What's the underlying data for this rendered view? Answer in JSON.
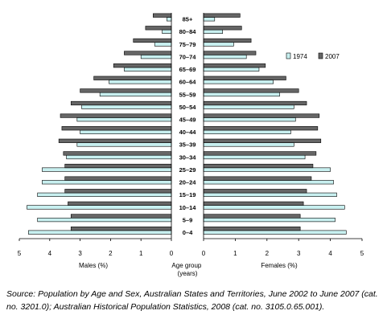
{
  "chart_data": {
    "type": "bar",
    "orientation": "horizontal",
    "subtype": "population-pyramid",
    "categories": [
      "0–4",
      "5–9",
      "10–14",
      "15–19",
      "20–24",
      "25–29",
      "30–34",
      "35–39",
      "40–44",
      "45–49",
      "50–54",
      "55–59",
      "60–64",
      "65–69",
      "70–74",
      "75–79",
      "80–84",
      "85+"
    ],
    "category_labels": [
      "0–4",
      "5–9",
      "10–14",
      "15–19",
      "20–24",
      "25–29",
      "30–34",
      "35–39",
      "40–44",
      "45–49",
      "50–54",
      "55–59",
      "60–64",
      "65–69",
      "70–74",
      "75–79",
      "80–84",
      "85+"
    ],
    "series": [
      {
        "name": "1974",
        "color": "#c8f0f0",
        "males": [
          4.7,
          4.4,
          4.75,
          4.4,
          4.25,
          4.25,
          3.45,
          3.1,
          3.0,
          3.1,
          2.95,
          2.35,
          2.05,
          1.55,
          1.0,
          0.55,
          0.3,
          0.15
        ],
        "females": [
          4.5,
          4.15,
          4.45,
          4.2,
          4.1,
          4.0,
          3.2,
          2.85,
          2.75,
          2.9,
          2.85,
          2.4,
          2.2,
          1.75,
          1.35,
          0.95,
          0.6,
          0.35
        ]
      },
      {
        "name": "2007",
        "color": "#666666",
        "males": [
          3.3,
          3.3,
          3.4,
          3.5,
          3.5,
          3.5,
          3.55,
          3.7,
          3.6,
          3.65,
          3.3,
          3.0,
          2.55,
          1.9,
          1.55,
          1.25,
          0.85,
          0.6
        ],
        "females": [
          3.05,
          3.05,
          3.15,
          3.25,
          3.4,
          3.45,
          3.55,
          3.7,
          3.6,
          3.65,
          3.25,
          3.0,
          2.6,
          1.95,
          1.65,
          1.5,
          1.2,
          1.15
        ]
      }
    ],
    "xlim": [
      0,
      5
    ],
    "x_ticks_left": [
      "5",
      "4",
      "3",
      "2",
      "1",
      "0"
    ],
    "x_ticks_right": [
      "0",
      "1",
      "2",
      "3",
      "4",
      "5"
    ],
    "xlabel_left": "Males (%)",
    "xlabel_center": "Age group\n(years)",
    "xlabel_right": "Females (%)",
    "legend": [
      "1974",
      "2007"
    ],
    "legend_placement": "top-right",
    "grid": false
  },
  "source": "Source: Population by Age and Sex, Australian States and Territories, June 2002 to June 2007 (cat. no. 3201.0); Australian Historical Population Statistics, 2008 (cat. no. 3105.0.65.001)."
}
